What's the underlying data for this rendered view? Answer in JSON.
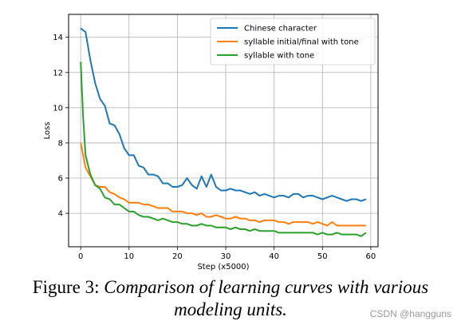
{
  "chart_data": {
    "type": "line",
    "title": "",
    "xlabel": "Step (x5000)",
    "ylabel": "Loss",
    "xlim": [
      -2.5,
      61.5
    ],
    "ylim": [
      2.1,
      15.3
    ],
    "xticks": [
      0,
      10,
      20,
      30,
      40,
      50,
      60
    ],
    "yticks": [
      4,
      6,
      8,
      10,
      12,
      14
    ],
    "grid": true,
    "legend": "top-right",
    "series": [
      {
        "name": "Chinese character",
        "color": "#1f77b4",
        "x": [
          0,
          1,
          2,
          3,
          4,
          5,
          6,
          7,
          8,
          9,
          10,
          11,
          12,
          13,
          14,
          15,
          16,
          17,
          18,
          19,
          20,
          21,
          22,
          23,
          24,
          25,
          26,
          27,
          28,
          29,
          30,
          31,
          32,
          33,
          34,
          35,
          36,
          37,
          38,
          39,
          40,
          41,
          42,
          43,
          44,
          45,
          46,
          47,
          48,
          49,
          50,
          51,
          52,
          53,
          54,
          55,
          56,
          57,
          58,
          59
        ],
        "values": [
          14.5,
          14.3,
          12.7,
          11.4,
          10.5,
          10.1,
          9.1,
          9.0,
          8.5,
          7.7,
          7.3,
          7.3,
          6.7,
          6.6,
          6.2,
          6.2,
          6.1,
          5.7,
          5.7,
          5.5,
          5.5,
          5.6,
          6.0,
          5.6,
          5.4,
          6.1,
          5.5,
          6.2,
          5.5,
          5.3,
          5.3,
          5.4,
          5.3,
          5.3,
          5.2,
          5.1,
          5.2,
          5.0,
          5.1,
          5.0,
          4.9,
          5.0,
          5.0,
          4.9,
          5.1,
          5.1,
          4.9,
          5.0,
          5.0,
          4.9,
          4.8,
          4.9,
          5.0,
          4.9,
          4.8,
          4.7,
          4.8,
          4.8,
          4.7,
          4.8
        ]
      },
      {
        "name": "syllable initial/final with tone",
        "color": "#ff7f0e",
        "x": [
          0,
          1,
          2,
          3,
          4,
          5,
          6,
          7,
          8,
          9,
          10,
          11,
          12,
          13,
          14,
          15,
          16,
          17,
          18,
          19,
          20,
          21,
          22,
          23,
          24,
          25,
          26,
          27,
          28,
          29,
          30,
          31,
          32,
          33,
          34,
          35,
          36,
          37,
          38,
          39,
          40,
          41,
          42,
          43,
          44,
          45,
          46,
          47,
          48,
          49,
          50,
          51,
          52,
          53,
          54,
          55,
          56,
          57,
          58,
          59
        ],
        "values": [
          8.0,
          6.6,
          6.1,
          5.6,
          5.5,
          5.5,
          5.2,
          5.1,
          4.9,
          4.8,
          4.6,
          4.6,
          4.6,
          4.5,
          4.5,
          4.4,
          4.3,
          4.3,
          4.3,
          4.1,
          4.1,
          4.1,
          4.0,
          4.0,
          3.9,
          4.0,
          3.8,
          3.8,
          3.9,
          3.8,
          3.7,
          3.7,
          3.8,
          3.7,
          3.7,
          3.6,
          3.6,
          3.5,
          3.6,
          3.6,
          3.6,
          3.5,
          3.5,
          3.4,
          3.5,
          3.5,
          3.5,
          3.5,
          3.4,
          3.5,
          3.4,
          3.3,
          3.5,
          3.3,
          3.3,
          3.3,
          3.3,
          3.3,
          3.3,
          3.3
        ]
      },
      {
        "name": "syllable with tone",
        "color": "#2ca02c",
        "x": [
          0,
          0.5,
          1,
          2,
          3,
          4,
          5,
          6,
          7,
          8,
          9,
          10,
          11,
          12,
          13,
          14,
          15,
          16,
          17,
          18,
          19,
          20,
          21,
          22,
          23,
          24,
          25,
          26,
          27,
          28,
          29,
          30,
          31,
          32,
          33,
          34,
          35,
          36,
          37,
          38,
          39,
          40,
          41,
          42,
          43,
          44,
          45,
          46,
          47,
          48,
          49,
          50,
          51,
          52,
          53,
          54,
          55,
          56,
          57,
          58,
          59
        ],
        "values": [
          12.6,
          9.5,
          7.3,
          6.2,
          5.6,
          5.4,
          4.9,
          4.8,
          4.5,
          4.5,
          4.3,
          4.1,
          4.1,
          3.9,
          3.8,
          3.8,
          3.7,
          3.6,
          3.7,
          3.6,
          3.5,
          3.5,
          3.4,
          3.4,
          3.3,
          3.3,
          3.4,
          3.3,
          3.3,
          3.2,
          3.2,
          3.2,
          3.1,
          3.2,
          3.1,
          3.1,
          3.0,
          3.1,
          3.0,
          3.0,
          3.0,
          3.0,
          2.9,
          2.9,
          2.9,
          2.9,
          2.9,
          2.9,
          2.9,
          2.9,
          2.8,
          2.9,
          2.8,
          2.8,
          2.9,
          2.8,
          2.8,
          2.8,
          2.8,
          2.7,
          2.9
        ]
      }
    ]
  },
  "caption": {
    "label": "Figure 3:",
    "text_line1": "Comparison of learning curves with various",
    "text_line2": "modeling units."
  },
  "watermark": "CSDN @hangguns"
}
